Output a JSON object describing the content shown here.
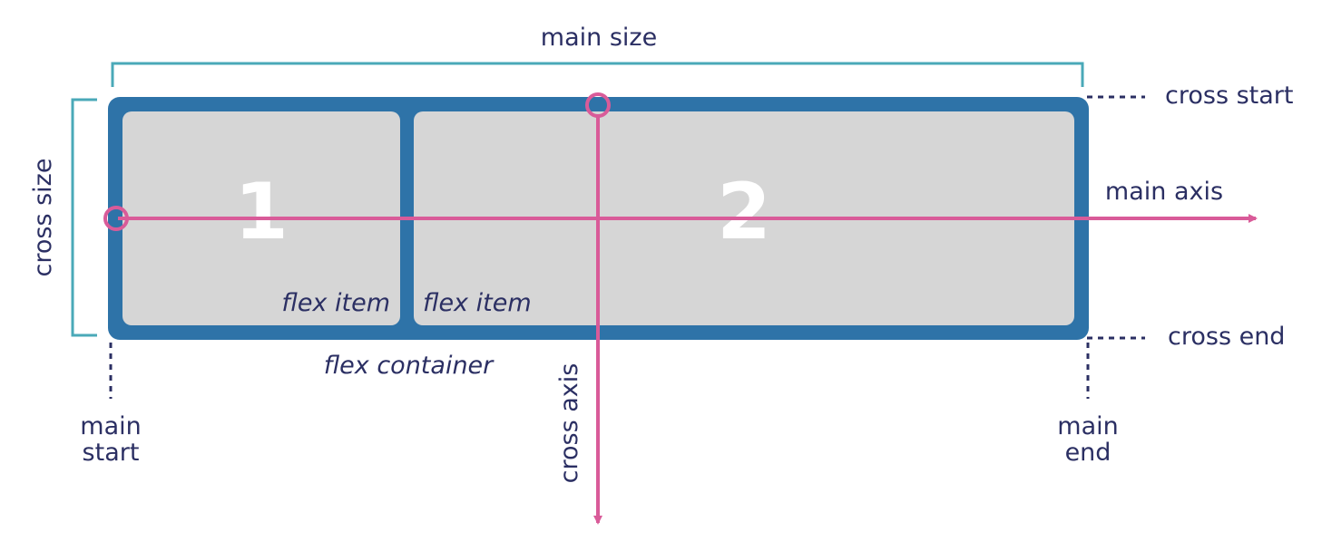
{
  "labels": {
    "main_size": "main size",
    "cross_size": "cross size",
    "cross_start": "cross start",
    "cross_end": "cross end",
    "main_axis": "main axis",
    "cross_axis": "cross axis",
    "main_start_line1": "main",
    "main_start_line2": "start",
    "main_end_line1": "main",
    "main_end_line2": "end",
    "flex_container": "flex container"
  },
  "items": [
    {
      "number": "1",
      "label": "flex item"
    },
    {
      "number": "2",
      "label": "flex item"
    }
  ],
  "colors": {
    "container": "#2e73a8",
    "item": "#d6d6d6",
    "axis": "#d95b99",
    "bracket": "#4aa9b8",
    "text": "#2b2f63",
    "dotted": "#2b2f63"
  }
}
